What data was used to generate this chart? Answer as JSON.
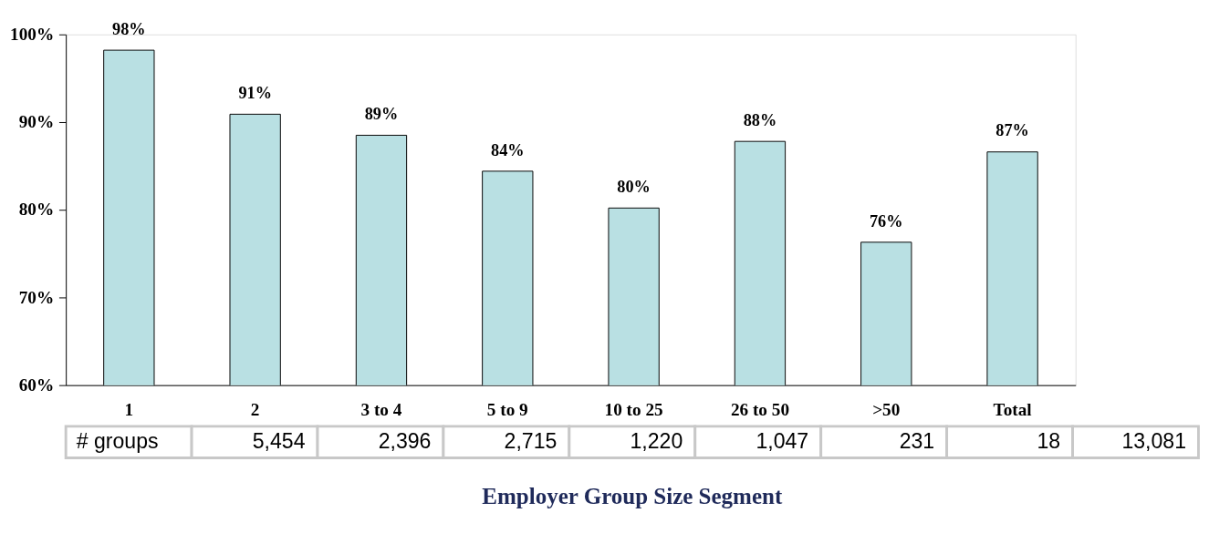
{
  "chart_data": {
    "type": "bar",
    "xlabel": "Employer Group Size Segment",
    "categories": [
      "1",
      "2",
      "3 to 4",
      "5 to 9",
      "10 to 25",
      "26 to 50",
      ">50",
      "Total"
    ],
    "values": [
      98.2,
      90.9,
      88.5,
      84.4,
      80.2,
      87.8,
      76.3,
      86.6
    ],
    "value_labels": [
      "98%",
      "91%",
      "89%",
      "84%",
      "80%",
      "88%",
      "76%",
      "87%"
    ],
    "color": "#b9e0e3",
    "ylim": [
      60,
      100
    ],
    "yticks": [
      {
        "value": 60,
        "label": "60%"
      },
      {
        "value": 70,
        "label": "70%"
      },
      {
        "value": 80,
        "label": "80%"
      },
      {
        "value": 90,
        "label": "90%"
      },
      {
        "value": 100,
        "label": "100%"
      }
    ],
    "grid": false,
    "annotations": [
      "# groups",
      "5,454",
      "2,396",
      "2,715",
      "1,220",
      "1,047",
      "231",
      "18",
      "13,081"
    ]
  }
}
